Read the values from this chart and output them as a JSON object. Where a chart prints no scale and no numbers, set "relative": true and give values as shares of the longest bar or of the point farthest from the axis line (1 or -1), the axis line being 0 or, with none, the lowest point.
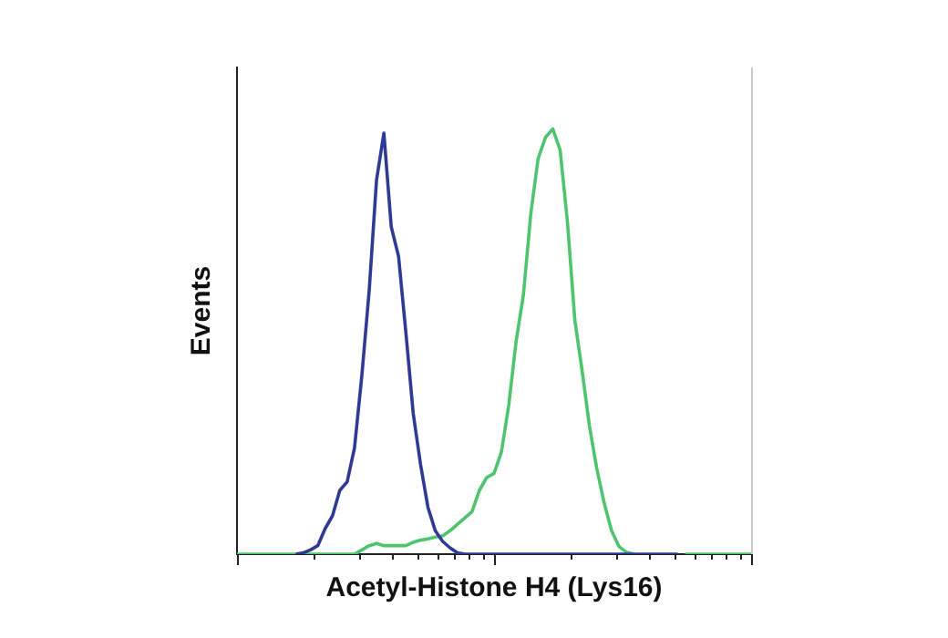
{
  "chart_data": {
    "type": "line",
    "relative": true,
    "xlabel": "Acetyl-Histone H4 (Lys16)",
    "ylabel": "Events",
    "marker": "none",
    "line_style": "solid",
    "grid": false,
    "legend": false,
    "tick_labels": false,
    "categories": [
      null,
      null,
      null,
      null,
      null,
      null,
      null,
      null,
      null,
      null,
      null,
      null,
      null,
      null,
      null,
      null,
      null,
      null,
      null,
      null,
      null,
      null,
      null,
      null,
      null,
      null,
      null,
      null,
      null,
      null,
      null,
      null,
      null,
      null,
      null,
      null,
      null,
      null,
      null,
      null,
      null,
      null,
      null,
      null,
      null,
      null,
      null,
      null,
      null,
      null,
      null,
      null,
      null,
      null,
      null,
      null,
      null,
      null,
      null,
      null,
      null,
      null,
      null,
      null,
      null,
      null,
      null,
      null,
      null,
      null,
      null
    ],
    "series": [
      {
        "color": "#2e3a94",
        "values": [
          null,
          null,
          null,
          null,
          null,
          null,
          null,
          null,
          0,
          0.003,
          0.01,
          0.02,
          0.06,
          0.09,
          0.15,
          0.17,
          0.25,
          0.42,
          0.62,
          0.88,
          0.99,
          0.77,
          0.7,
          0.52,
          0.33,
          0.21,
          0.11,
          0.055,
          0.03,
          0.015,
          0.003,
          0,
          0,
          0,
          0,
          0,
          0,
          0,
          0,
          0,
          0,
          0,
          0,
          0,
          0,
          0,
          0,
          0,
          0,
          0,
          0,
          0,
          0,
          0,
          0,
          0,
          0,
          0,
          0,
          0,
          0,
          null,
          null,
          null,
          null,
          null,
          null,
          null,
          null,
          null,
          null
        ]
      },
      {
        "color": "#4fc46e",
        "values": [
          0,
          0,
          0,
          0,
          0,
          0,
          0,
          0,
          0,
          0,
          0,
          0,
          0,
          0,
          0,
          0,
          0,
          0.01,
          0.02,
          0.025,
          0.02,
          0.02,
          0.02,
          0.02,
          0.028,
          0.033,
          0.036,
          0.04,
          0.043,
          0.055,
          0.07,
          0.085,
          0.1,
          0.15,
          0.18,
          0.19,
          0.24,
          0.35,
          0.5,
          0.61,
          0.8,
          0.93,
          0.98,
          1,
          0.95,
          0.78,
          0.55,
          0.43,
          0.3,
          0.2,
          0.12,
          0.055,
          0.018,
          0.005,
          0,
          null,
          null,
          null,
          null,
          null,
          null,
          0,
          0,
          0,
          0,
          0,
          0,
          0,
          0,
          0,
          0
        ]
      }
    ]
  }
}
